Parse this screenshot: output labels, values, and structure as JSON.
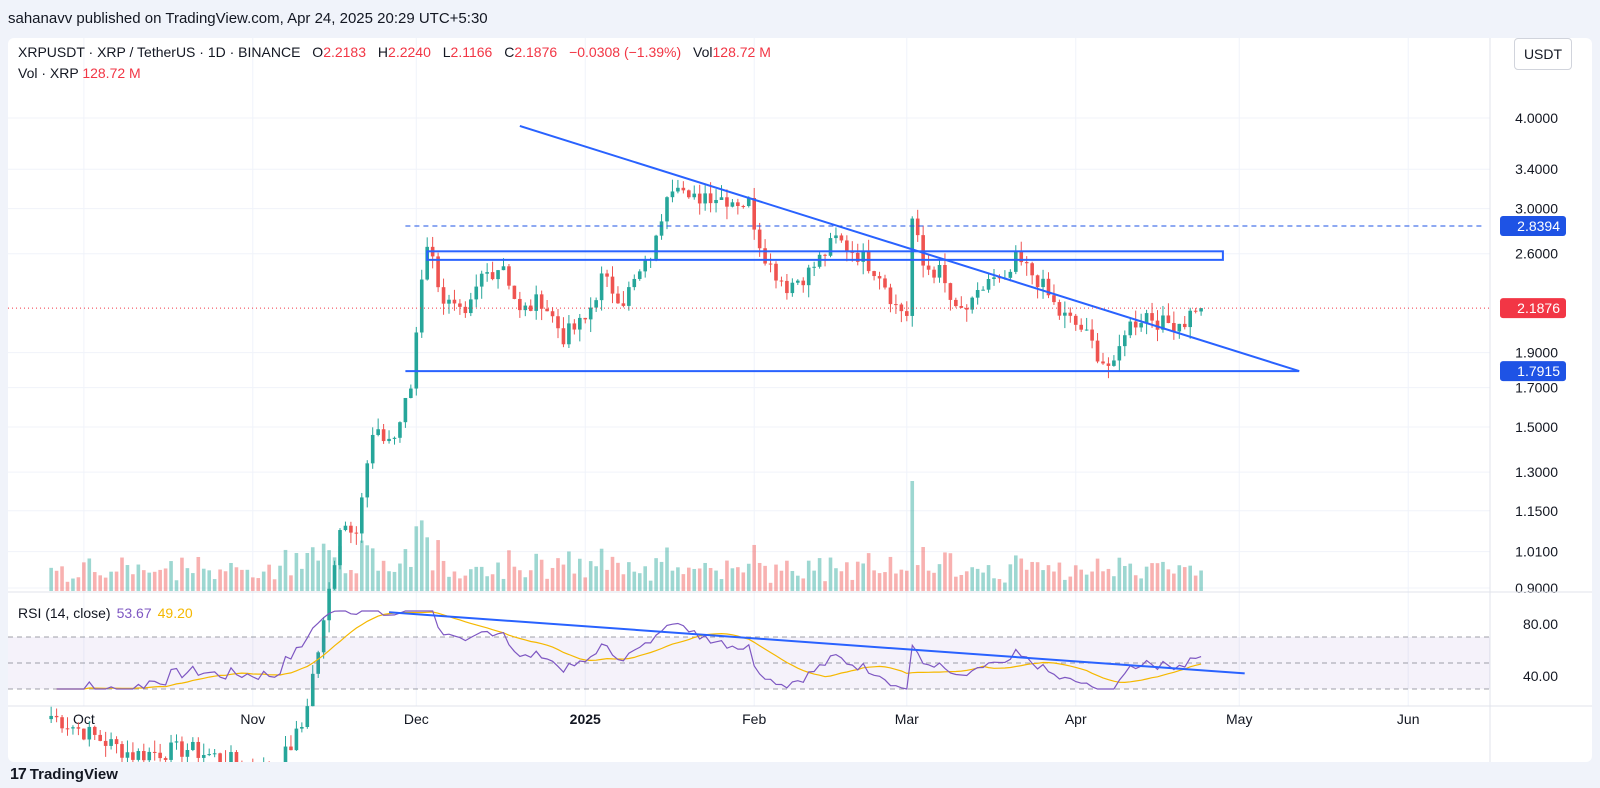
{
  "header": {
    "published": "sahanavv published on TradingView.com, Apr 24, 2025 20:29 UTC+5:30"
  },
  "legend": {
    "symbol": "XRPUSDT · XRP / TetherUS · 1D · BINANCE",
    "o_label": "O",
    "o": "2.2183",
    "h_label": "H",
    "h": "2.2240",
    "l_label": "L",
    "l": "2.1166",
    "c_label": "C",
    "c": "2.1876",
    "change": "−0.0308 (−1.39%)",
    "vol_label": "Vol",
    "vol": "128.72 M",
    "vol_line_label": "Vol · XRP",
    "vol_line_value": "128.72 M"
  },
  "currency": "USDT",
  "rsi_legend": {
    "label": "RSI (14, close)",
    "rsi": "53.67",
    "ma": "49.20"
  },
  "footer": {
    "logo": "17",
    "brand": "TradingView"
  },
  "colors": {
    "up": "#26a69a",
    "down": "#ef5350",
    "trend": "#2962ff",
    "rsi": "#7e57c2",
    "rsi_ma": "#f5b800",
    "last_price": "#f23645",
    "level": "#1e53e5"
  },
  "chart_data": {
    "type": "candlestick",
    "scale": "log",
    "price_ticks": [
      "4.0000",
      "3.4000",
      "3.0000",
      "2.6000",
      "1.9000",
      "1.7000",
      "1.5000",
      "1.3000",
      "1.1500",
      "1.0100",
      "0.9000"
    ],
    "price_tick_values": [
      4.0,
      3.4,
      3.0,
      2.6,
      1.9,
      1.7,
      1.5,
      1.3,
      1.15,
      1.01,
      0.9
    ],
    "price_labels": [
      {
        "text": "2.8394",
        "value": 2.8394,
        "color": "#1e53e5"
      },
      {
        "text": "2.1876",
        "value": 2.1876,
        "color": "#f23645"
      },
      {
        "text": "1.7915",
        "value": 1.7915,
        "color": "#1e53e5"
      }
    ],
    "time_labels": [
      {
        "text": "Oct",
        "date": "2024-10-01"
      },
      {
        "text": "Nov",
        "date": "2024-11-01"
      },
      {
        "text": "Dec",
        "date": "2024-12-01"
      },
      {
        "text": "2025",
        "date": "2025-01-01",
        "bold": true
      },
      {
        "text": "Feb",
        "date": "2025-02-01"
      },
      {
        "text": "Mar",
        "date": "2025-03-01"
      },
      {
        "text": "Apr",
        "date": "2025-04-01"
      },
      {
        "text": "May",
        "date": "2025-05-01"
      },
      {
        "text": "Jun",
        "date": "2025-06-01"
      }
    ],
    "waypoints": [
      [
        "2024-09-25",
        0.6
      ],
      [
        "2024-10-10",
        0.53
      ],
      [
        "2024-10-20",
        0.54
      ],
      [
        "2024-11-05",
        0.5
      ],
      [
        "2024-11-10",
        0.58
      ],
      [
        "2024-11-14",
        0.8
      ],
      [
        "2024-11-17",
        1.1
      ],
      [
        "2024-11-20",
        1.1
      ],
      [
        "2024-11-23",
        1.45
      ],
      [
        "2024-11-27",
        1.45
      ],
      [
        "2024-11-30",
        1.7
      ],
      [
        "2024-12-02",
        2.43
      ],
      [
        "2024-12-03",
        2.7
      ],
      [
        "2024-12-06",
        2.25
      ],
      [
        "2024-12-10",
        2.1
      ],
      [
        "2024-12-13",
        2.42
      ],
      [
        "2024-12-17",
        2.52
      ],
      [
        "2024-12-20",
        2.15
      ],
      [
        "2024-12-24",
        2.25
      ],
      [
        "2024-12-28",
        2.0
      ],
      [
        "2025-01-01",
        2.1
      ],
      [
        "2025-01-04",
        2.4
      ],
      [
        "2025-01-08",
        2.25
      ],
      [
        "2025-01-12",
        2.5
      ],
      [
        "2025-01-14",
        2.7
      ],
      [
        "2025-01-16",
        3.2
      ],
      [
        "2025-01-18",
        3.3
      ],
      [
        "2025-01-20",
        3.05
      ],
      [
        "2025-01-23",
        3.15
      ],
      [
        "2025-01-27",
        3.1
      ],
      [
        "2025-01-31",
        3.05
      ],
      [
        "2025-02-02",
        2.7
      ],
      [
        "2025-02-04",
        2.5
      ],
      [
        "2025-02-07",
        2.35
      ],
      [
        "2025-02-11",
        2.45
      ],
      [
        "2025-02-16",
        2.72
      ],
      [
        "2025-02-20",
        2.6
      ],
      [
        "2025-02-24",
        2.45
      ],
      [
        "2025-02-27",
        2.2
      ],
      [
        "2025-03-01",
        2.15
      ],
      [
        "2025-03-02",
        2.9
      ],
      [
        "2025-03-04",
        2.5
      ],
      [
        "2025-03-07",
        2.45
      ],
      [
        "2025-03-10",
        2.15
      ],
      [
        "2025-03-13",
        2.2
      ],
      [
        "2025-03-16",
        2.4
      ],
      [
        "2025-03-19",
        2.35
      ],
      [
        "2025-03-21",
        2.55
      ],
      [
        "2025-03-25",
        2.4
      ],
      [
        "2025-03-29",
        2.15
      ],
      [
        "2025-04-02",
        2.05
      ],
      [
        "2025-04-06",
        1.85
      ],
      [
        "2025-04-08",
        1.8
      ],
      [
        "2025-04-10",
        2.05
      ],
      [
        "2025-04-14",
        2.15
      ],
      [
        "2025-04-17",
        2.08
      ],
      [
        "2025-04-21",
        2.1
      ],
      [
        "2025-04-23",
        2.2
      ],
      [
        "2025-04-24",
        2.1876
      ]
    ],
    "rsi_scale": {
      "min": 30,
      "max": 90,
      "band_top": 70,
      "mid": 50,
      "band_bottom": 30
    },
    "rsi_ticks": [
      "80.00",
      "40.00"
    ],
    "rsi_tick_values": [
      80,
      40
    ],
    "trendlines": [
      {
        "pane": "price",
        "from": [
          "2024-12-20",
          3.9
        ],
        "to": [
          "2025-05-12",
          1.7915
        ],
        "color": "#2962ff"
      },
      {
        "pane": "price",
        "from": [
          "2024-11-29",
          1.7915
        ],
        "to": [
          "2025-05-12",
          1.7915
        ],
        "color": "#2962ff"
      },
      {
        "pane": "price",
        "from": [
          "2024-11-29",
          2.8394
        ],
        "to": [
          "2025-06-15",
          2.8394
        ],
        "color": "#1e53e5",
        "dashed": true
      },
      {
        "pane": "rsi",
        "from": [
          "2024-11-26",
          89
        ],
        "to": [
          "2025-05-02",
          42
        ],
        "color": "#2962ff"
      }
    ],
    "zones": [
      {
        "from": "2024-12-03",
        "to": "2025-04-28",
        "low": 2.55,
        "high": 2.62,
        "color": "#2962ff"
      }
    ]
  }
}
